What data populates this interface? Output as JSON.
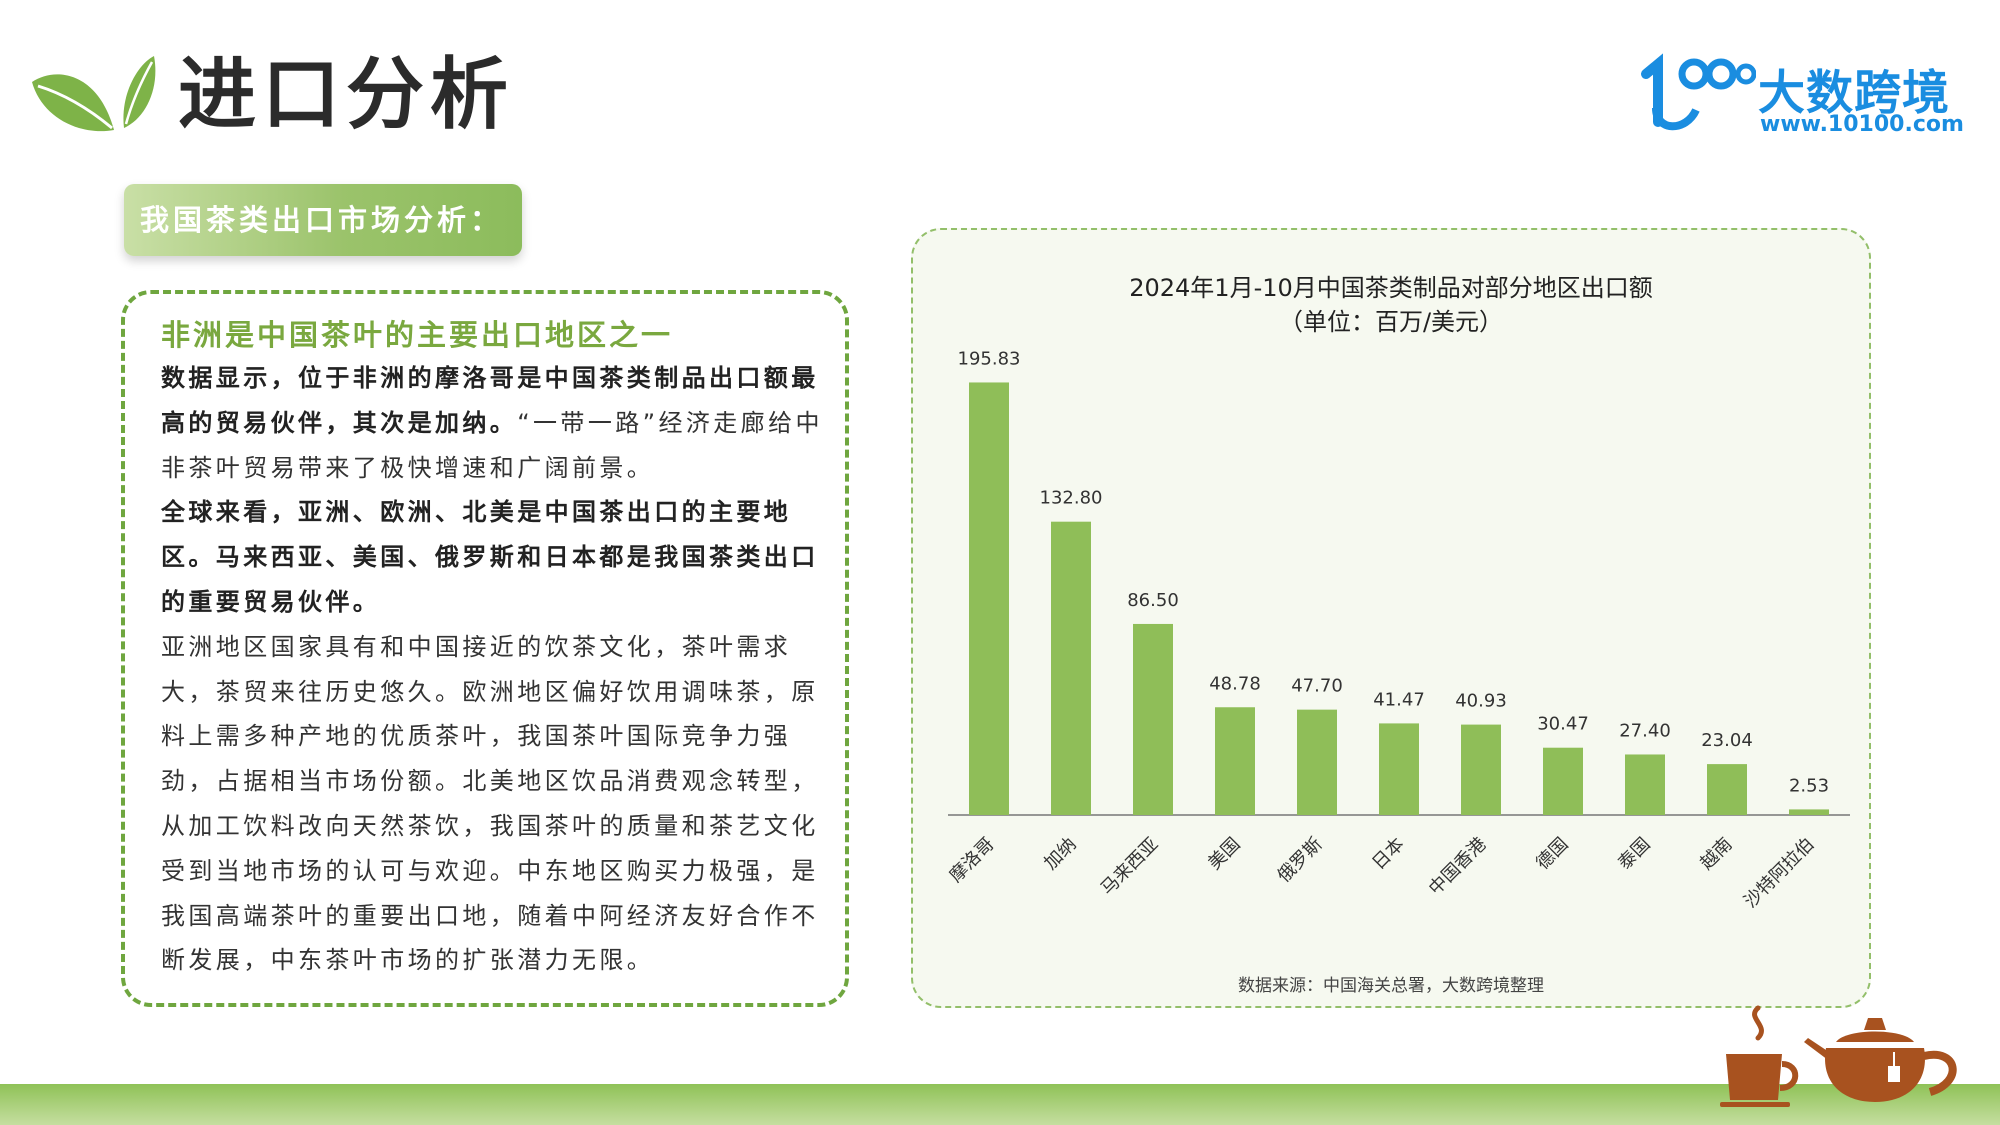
{
  "header": {
    "title": "进口分析",
    "brand_name": "大数跨境",
    "brand_url": "www.10100.com"
  },
  "section": {
    "label": "我国茶类出口市场分析："
  },
  "text_box": {
    "heading": "非洲是中国茶叶的主要出口地区之一",
    "p1_bold": "数据显示，位于非洲的摩洛哥是中国茶类制品出口额最高的贸易伙伴，其次是加纳。",
    "p1_normal": "“一带一路”经济走廊给中非茶叶贸易带来了极快增速和广阔前景。",
    "p2_bold": "全球来看，亚洲、欧洲、北美是中国茶出口的主要地区。马来西亚、美国、俄罗斯和日本都是我国茶类出口的重要贸易伙伴。",
    "p3": "亚洲地区国家具有和中国接近的饮茶文化，茶叶需求大，茶贸来往历史悠久。欧洲地区偏好饮用调味茶，原料上需多种产地的优质茶叶，我国茶叶国际竞争力强劲，占据相当市场份额。北美地区饮品消费观念转型，从加工饮料改向天然茶饮，我国茶叶的质量和茶艺文化受到当地市场的认可与欢迎。中东地区购买力极强，是我国高端茶叶的重要出口地，随着中阿经济友好合作不断发展，中东茶叶市场的扩张潜力无限。"
  },
  "chart_data": {
    "type": "bar",
    "title": "2024年1月-10月中国茶类制品对部分地区出口额",
    "subtitle": "（单位：百万/美元）",
    "categories": [
      "摩洛哥",
      "加纳",
      "马来西亚",
      "美国",
      "俄罗斯",
      "日本",
      "中国香港",
      "德国",
      "泰国",
      "越南",
      "沙特阿拉伯"
    ],
    "values": [
      195.83,
      132.8,
      86.5,
      48.78,
      47.7,
      41.47,
      40.93,
      30.47,
      27.4,
      23.04,
      2.53
    ],
    "value_labels": [
      "195.83",
      "132.80",
      "86.50",
      "48.78",
      "47.70",
      "41.47",
      "40.93",
      "30.47",
      "27.40",
      "23.04",
      "2.53"
    ],
    "ylim": [
      0,
      206
    ],
    "grid": false,
    "bar_color": "#8fbe58",
    "source": "数据来源：中国海关总署，大数跨境整理"
  },
  "colors": {
    "accent_green": "#7aa83f",
    "brand_blue": "#1a8de0",
    "teapot_brown": "#a8521f"
  },
  "icons": {
    "leaf": "leaf-icon",
    "brand_mark": "brand-logo-icon",
    "teapot": "teapot-icon",
    "teacup": "teacup-icon"
  }
}
